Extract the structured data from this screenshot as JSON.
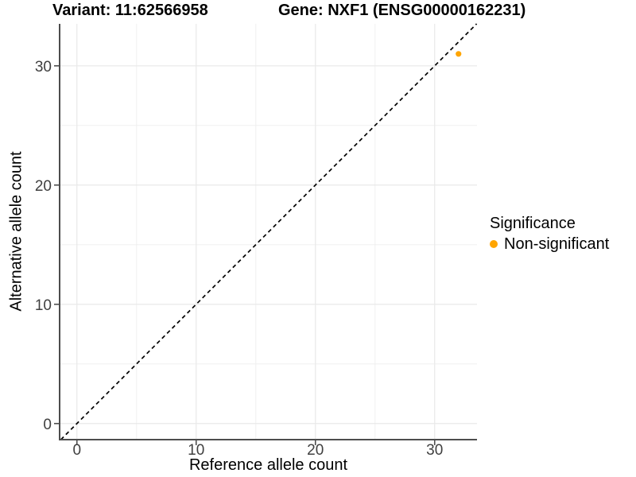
{
  "title": {
    "variant": "Variant: 11:62566958",
    "gene": "Gene: NXF1 (ENSG00000162231)"
  },
  "axes": {
    "x_label": "Reference allele count",
    "y_label": "Alternative allele count"
  },
  "legend": {
    "title": "Significance",
    "items": [
      {
        "label": "Non-significant",
        "color": "#FFA500"
      }
    ]
  },
  "colors": {
    "background": "#FFFFFF",
    "grid_major": "#E9E9E9",
    "grid_minor": "#F0F0F0",
    "axis_line": "#4D4D4D",
    "tick_mark": "#4D4D4D",
    "tick_text": "#404040",
    "identity_line": "#000000",
    "point": "#FFA500"
  },
  "chart_data": {
    "type": "scatter",
    "title": "Variant: 11:62566958   Gene: NXF1 (ENSG00000162231)",
    "xlabel": "Reference allele count",
    "ylabel": "Alternative allele count",
    "xlim": [
      -1.45,
      33.55
    ],
    "ylim": [
      -1.35,
      33.52
    ],
    "xticks": [
      0,
      10,
      20,
      30
    ],
    "yticks": [
      0,
      10,
      20,
      30
    ],
    "xminor": [
      5,
      15,
      25
    ],
    "yminor": [
      5,
      15,
      25
    ],
    "grid": true,
    "legend_position": "right",
    "series": [
      {
        "name": "Non-significant",
        "color": "#FFA500",
        "points": [
          {
            "x": 32,
            "y": 31
          }
        ]
      }
    ],
    "reference_line": {
      "kind": "identity",
      "slope": 1,
      "intercept": 0,
      "style": "dashed",
      "color": "#000000"
    }
  }
}
